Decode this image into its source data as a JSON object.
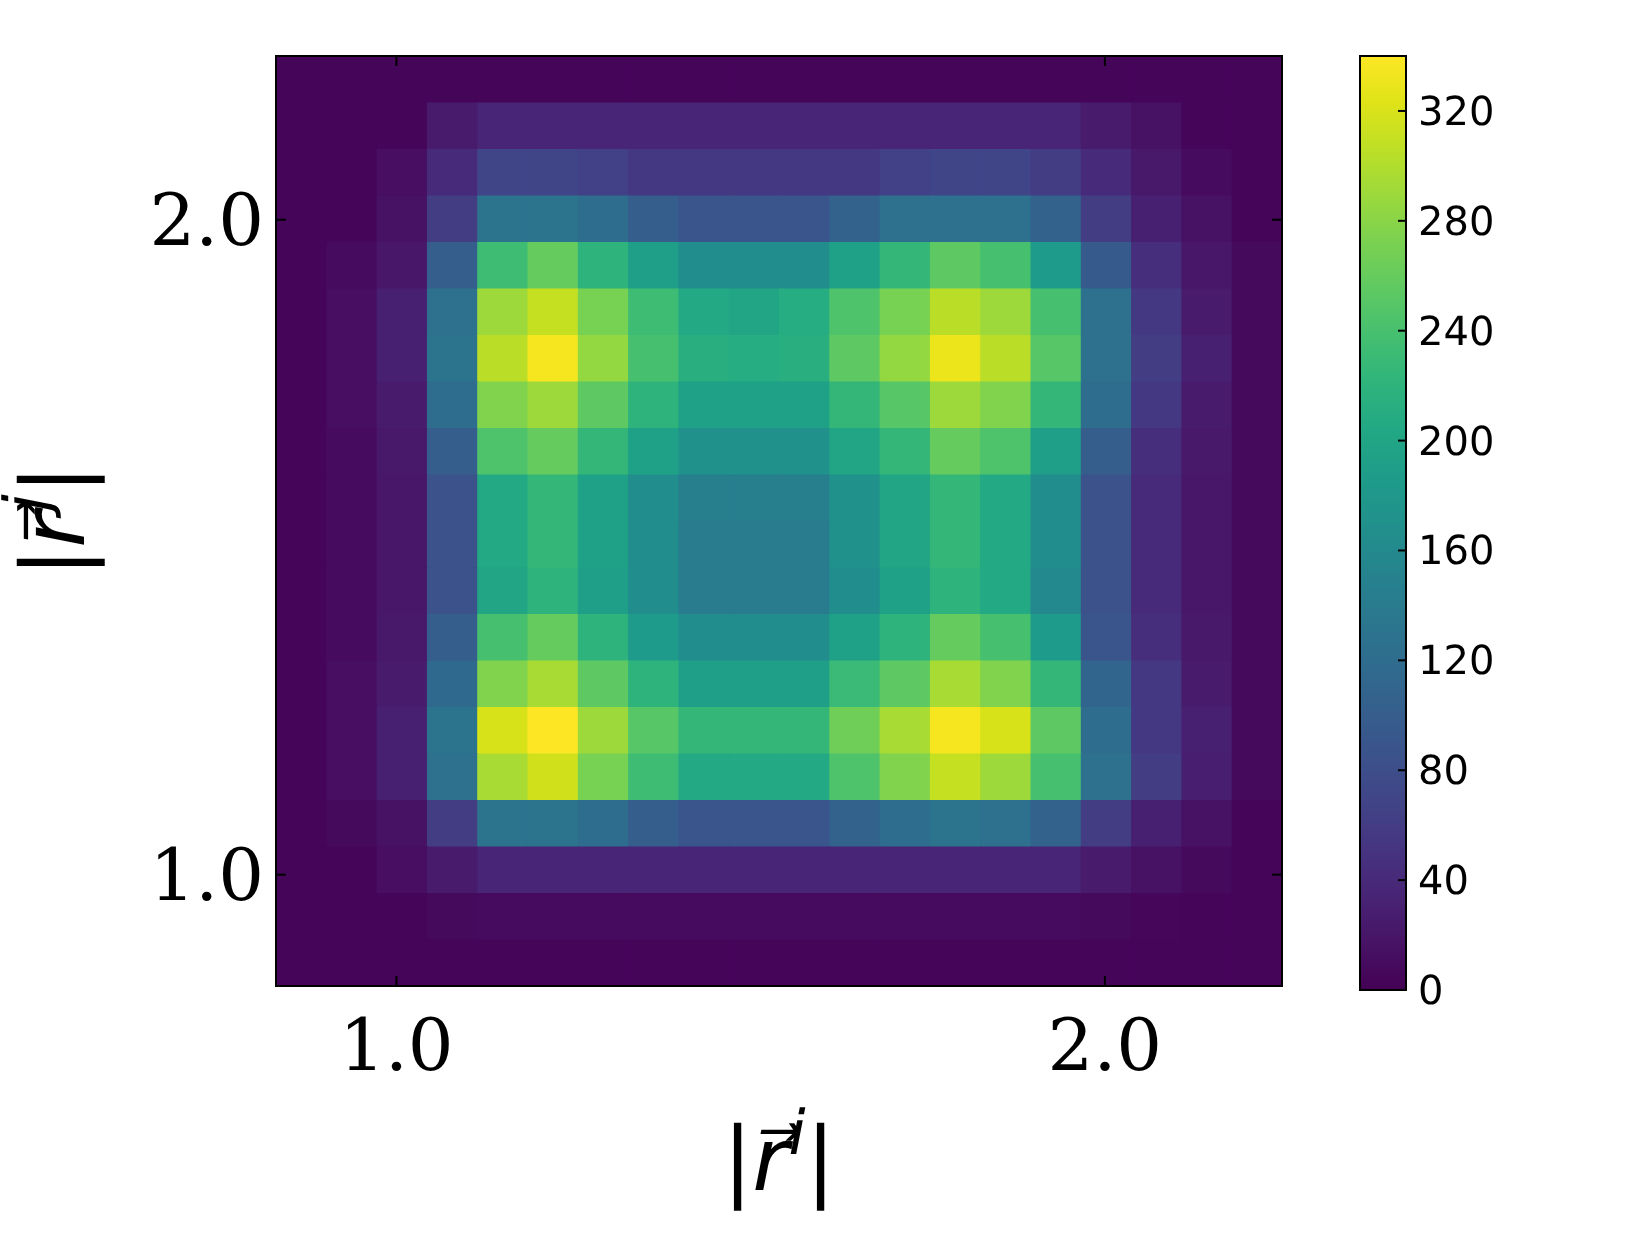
{
  "chart_data": {
    "type": "heatmap",
    "xlabel": "|r⃗$^{i}$|",
    "ylabel": "|r⃗$^{j}$|",
    "xlim": [
      0.83,
      2.25
    ],
    "ylim": [
      0.83,
      2.25
    ],
    "xticks": [
      {
        "value": 1,
        "label": "1.0"
      },
      {
        "value": 2,
        "label": "2.0"
      }
    ],
    "yticks": [
      {
        "value": 1,
        "label": "1.0"
      },
      {
        "value": 2,
        "label": "2.0"
      }
    ],
    "clim": [
      0,
      340
    ],
    "cticks": [
      0,
      40,
      80,
      120,
      160,
      200,
      240,
      280,
      320
    ],
    "cells": [
      [
        5,
        5,
        5,
        5,
        5,
        5,
        5,
        5,
        5,
        5,
        5,
        5,
        5,
        5,
        5,
        5,
        5,
        5,
        5,
        5
      ],
      [
        5,
        5,
        5,
        25,
        35,
        35,
        35,
        35,
        35,
        35,
        35,
        35,
        35,
        35,
        35,
        35,
        25,
        15,
        5,
        5
      ],
      [
        5,
        5,
        12,
        40,
        70,
        70,
        65,
        55,
        55,
        55,
        55,
        55,
        65,
        70,
        70,
        60,
        40,
        22,
        10,
        5
      ],
      [
        5,
        5,
        15,
        60,
        130,
        130,
        120,
        100,
        90,
        90,
        90,
        105,
        125,
        125,
        125,
        105,
        60,
        30,
        15,
        5
      ],
      [
        5,
        10,
        20,
        100,
        235,
        260,
        220,
        190,
        165,
        165,
        165,
        195,
        225,
        255,
        240,
        185,
        95,
        45,
        20,
        8
      ],
      [
        5,
        12,
        30,
        125,
        290,
        310,
        270,
        235,
        205,
        200,
        210,
        245,
        270,
        305,
        290,
        240,
        125,
        55,
        25,
        8
      ],
      [
        5,
        12,
        30,
        130,
        305,
        335,
        285,
        240,
        215,
        210,
        215,
        255,
        285,
        330,
        305,
        250,
        125,
        60,
        30,
        8
      ],
      [
        5,
        12,
        25,
        120,
        275,
        290,
        255,
        220,
        195,
        195,
        195,
        225,
        250,
        290,
        275,
        225,
        120,
        55,
        25,
        8
      ],
      [
        5,
        10,
        22,
        100,
        245,
        260,
        225,
        195,
        170,
        170,
        170,
        200,
        225,
        260,
        245,
        190,
        100,
        45,
        22,
        8
      ],
      [
        5,
        10,
        20,
        85,
        205,
        225,
        195,
        165,
        145,
        145,
        145,
        170,
        200,
        225,
        205,
        165,
        85,
        40,
        20,
        8
      ],
      [
        5,
        10,
        20,
        85,
        205,
        225,
        195,
        165,
        140,
        140,
        140,
        170,
        200,
        225,
        205,
        165,
        85,
        40,
        20,
        8
      ],
      [
        5,
        10,
        20,
        85,
        200,
        220,
        190,
        165,
        140,
        140,
        140,
        165,
        195,
        220,
        205,
        160,
        85,
        40,
        20,
        8
      ],
      [
        5,
        10,
        22,
        100,
        240,
        260,
        220,
        185,
        165,
        165,
        165,
        195,
        220,
        260,
        240,
        185,
        90,
        45,
        22,
        8
      ],
      [
        5,
        12,
        25,
        115,
        275,
        295,
        255,
        220,
        190,
        190,
        190,
        230,
        255,
        295,
        275,
        225,
        110,
        55,
        25,
        8
      ],
      [
        5,
        12,
        30,
        130,
        320,
        340,
        290,
        250,
        225,
        225,
        225,
        265,
        295,
        335,
        320,
        255,
        120,
        55,
        30,
        8
      ],
      [
        5,
        12,
        30,
        125,
        295,
        315,
        270,
        235,
        205,
        205,
        205,
        245,
        275,
        310,
        290,
        240,
        125,
        60,
        28,
        8
      ],
      [
        5,
        8,
        15,
        60,
        130,
        130,
        120,
        100,
        90,
        90,
        90,
        105,
        120,
        130,
        125,
        105,
        60,
        30,
        15,
        5
      ],
      [
        5,
        5,
        12,
        25,
        35,
        35,
        35,
        35,
        35,
        35,
        35,
        35,
        35,
        35,
        35,
        35,
        25,
        15,
        8,
        5
      ],
      [
        5,
        5,
        5,
        8,
        10,
        10,
        10,
        10,
        10,
        10,
        10,
        10,
        10,
        10,
        10,
        10,
        8,
        6,
        5,
        5
      ],
      [
        5,
        5,
        5,
        5,
        5,
        5,
        5,
        5,
        5,
        5,
        5,
        5,
        5,
        5,
        5,
        5,
        5,
        5,
        5,
        5
      ]
    ]
  }
}
